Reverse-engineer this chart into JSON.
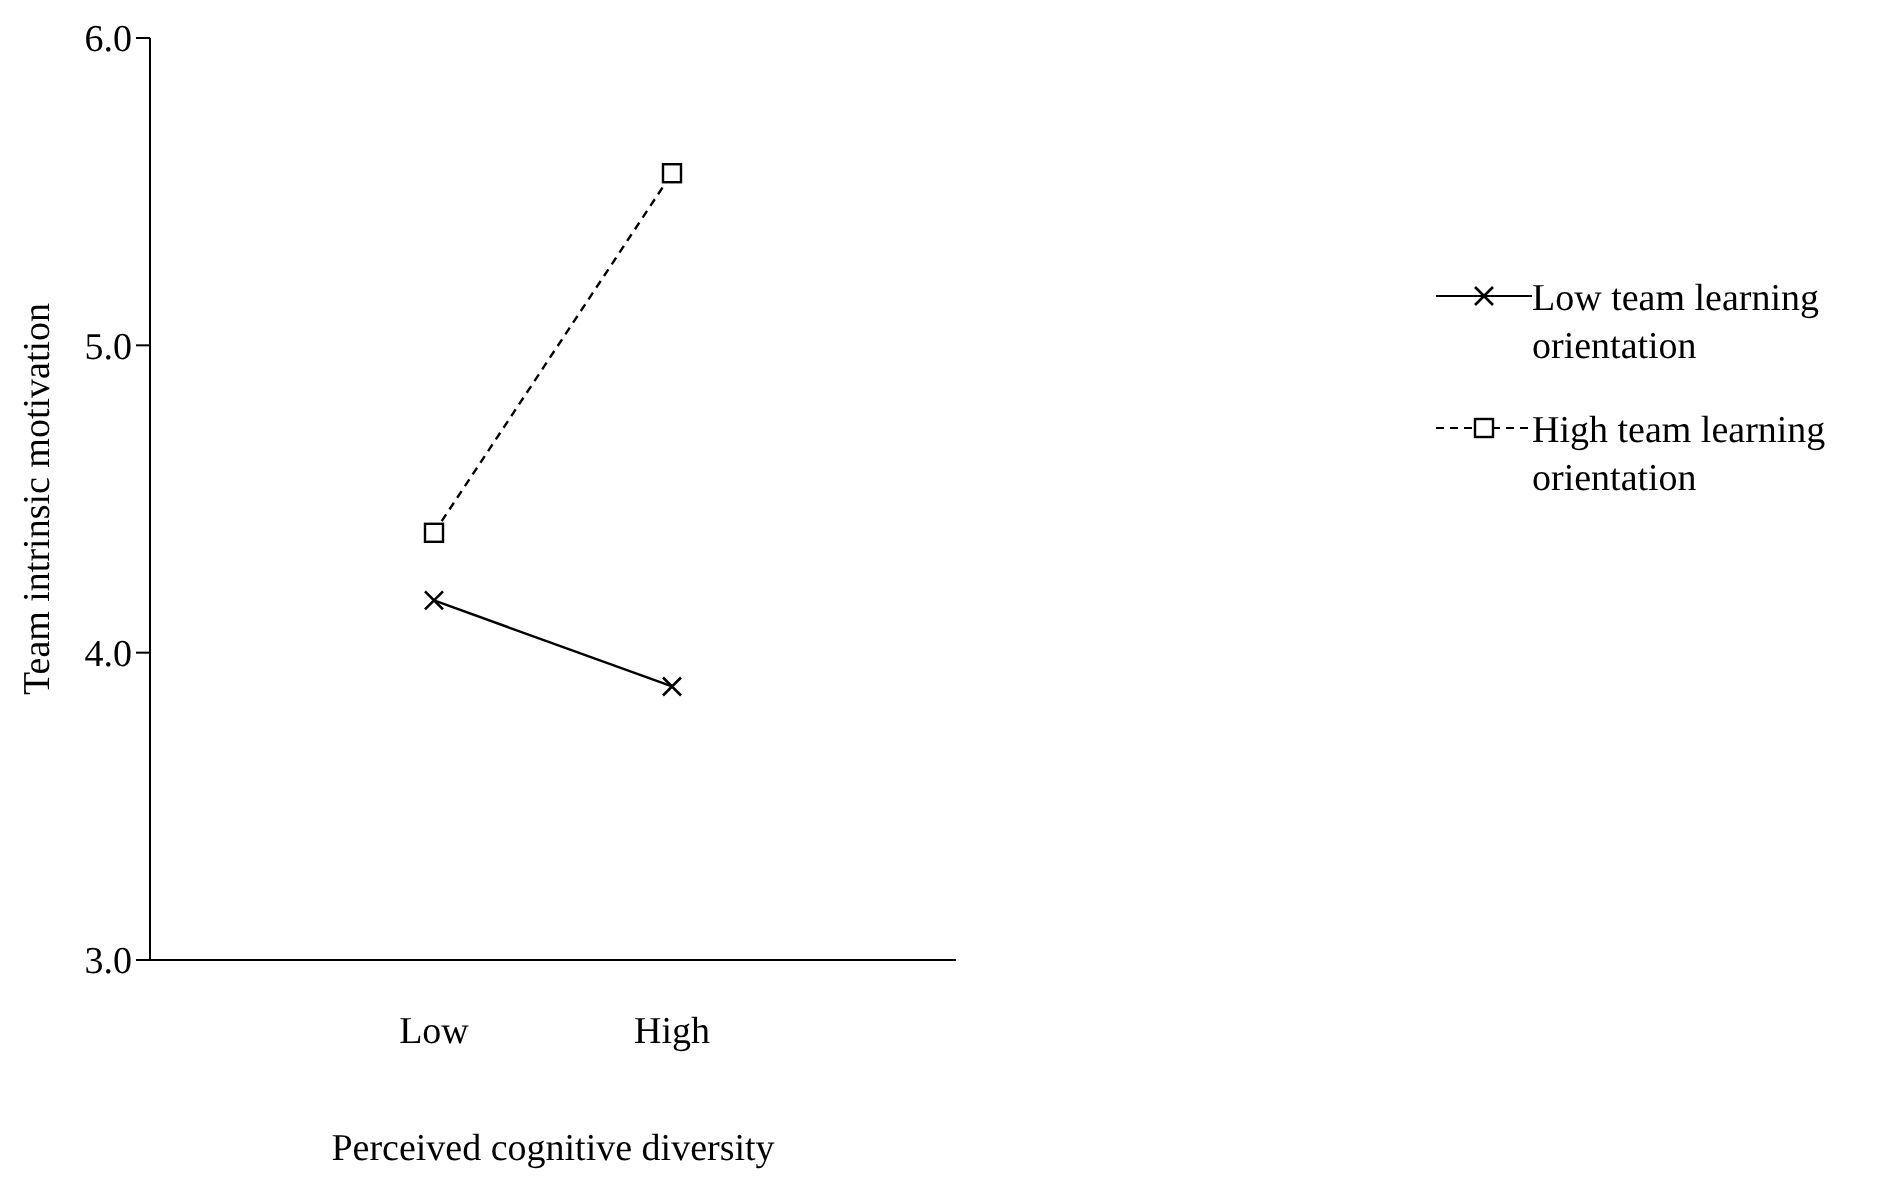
{
  "chart_data": {
    "type": "line",
    "xlabel": "Perceived cognitive diversity",
    "ylabel": "Team intrinsic motivation",
    "categories": [
      "Low",
      "High"
    ],
    "series": [
      {
        "name": "Low team learning orientation",
        "color": "#000000",
        "values": [
          4.17,
          3.89
        ],
        "marker": "cross",
        "line_style": "solid"
      },
      {
        "name": "High team learning orientation",
        "color": "#000000",
        "values": [
          4.39,
          5.56
        ],
        "marker": "square",
        "line_style": "dashed"
      }
    ],
    "ylim": [
      3,
      6
    ],
    "yticks": [
      {
        "value": 3,
        "label": "3.0"
      },
      {
        "value": 4,
        "label": "4.0"
      },
      {
        "value": 5,
        "label": "5.0"
      },
      {
        "value": 6,
        "label": "6.0"
      }
    ],
    "grid": false,
    "legend": "right"
  }
}
